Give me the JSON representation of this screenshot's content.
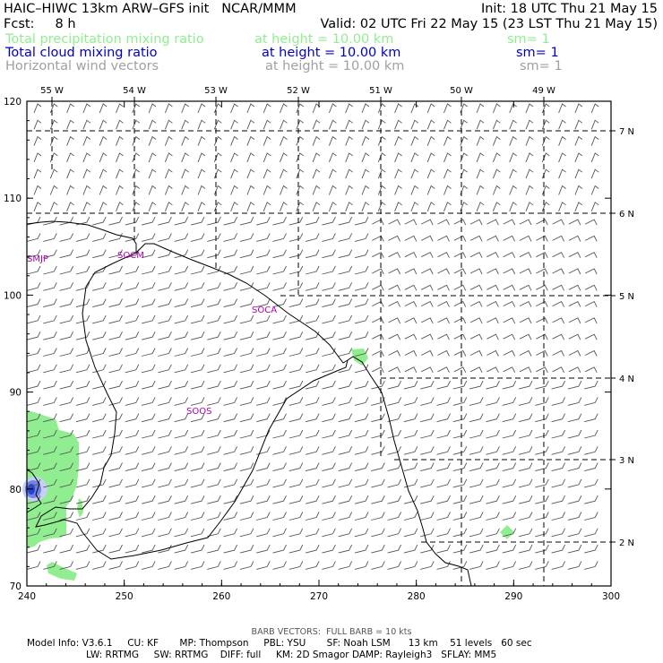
{
  "header": {
    "line1_left": "HAIC–HIWC 13km ARW–GFS init   NCAR/MMM",
    "line1_right": "Init: 18 UTC Thu 21 May 15",
    "line2_left": "Fcst:     8 h",
    "line2_right": "Valid: 02 UTC Fri 22 May 15 (23 LST Thu 21 May 15)",
    "fields": [
      {
        "name": "Total precipitation mixing ratio",
        "height": "at height = 10.00 km",
        "sm": "sm= 1",
        "color": "#90ee90"
      },
      {
        "name": "Total cloud mixing ratio",
        "height": "at height = 10.00 km",
        "sm": "sm= 1",
        "color": "#0000c8"
      },
      {
        "name": "Horizontal wind vectors",
        "height": "at height = 10.00 km",
        "sm": "sm= 1",
        "color": "#a0a0a0"
      }
    ]
  },
  "map": {
    "top_lon_labels": [
      "55 W",
      "54 W",
      "53 W",
      "52 W",
      "51 W",
      "50 W",
      "49 W"
    ],
    "right_lat_labels": [
      "7 N",
      "6 N",
      "5 N",
      "4 N",
      "3 N",
      "2 N"
    ],
    "left_y_ticks": [
      "120",
      "110",
      "100",
      "90",
      "80",
      "70"
    ],
    "bottom_x_ticks": [
      "240",
      "250",
      "260",
      "270",
      "280",
      "290",
      "300"
    ],
    "stations": [
      "SMJP",
      "SOCM",
      "SOCA",
      "SOOS"
    ],
    "land_color": "#90ee90",
    "cloud_color": "#2a3fd0"
  },
  "footer": {
    "barb_note": "BARB VECTORS:  FULL BARB = 10 kts",
    "model_line1": "Model Info: V3.6.1     CU: KF       MP: Thompson     PBL: YSU       SF: Noah LSM      13 km    51 levels   60 sec",
    "model_line2": "LW: RRTMG     SW: RRTMG    DIFF: full     KM: 2D Smagor DAMP: Rayleigh3   SFLAY: MM5"
  }
}
